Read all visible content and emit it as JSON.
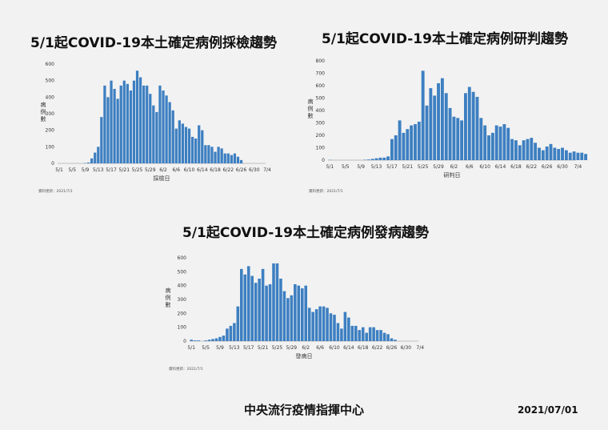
{
  "titles": {
    "test": "5/1起COVID-19本土確定病例採檢趨勢",
    "judge": "5/1起COVID-19本土確定病例研判趨勢",
    "onset": "5/1起COVID-19本土確定病例發病趨勢"
  },
  "footer": {
    "org": "中央流行疫情指揮中心",
    "date": "2021/07/01"
  },
  "colors": {
    "bar": "#3d7fc1",
    "axis": "#888888"
  },
  "chart_data": [
    {
      "type": "bar",
      "title": "5/1起COVID-19本土確定病例採檢趨勢",
      "xlabel": "採檢日",
      "ylabel": "病例數",
      "source": "資料更新：2021/7/1",
      "ylim": [
        0,
        600
      ],
      "yticks": [
        0,
        100,
        200,
        300,
        400,
        500,
        600
      ],
      "x_tick_labels": [
        "5/1",
        "5/5",
        "5/9",
        "5/13",
        "5/17",
        "5/21",
        "5/25",
        "5/29",
        "6/2",
        "6/6",
        "6/10",
        "6/14",
        "6/18",
        "6/22",
        "6/26",
        "6/30",
        "7/4"
      ],
      "values": [
        0,
        0,
        0,
        0,
        0,
        0,
        0,
        0,
        2,
        5,
        30,
        65,
        100,
        280,
        470,
        400,
        500,
        450,
        390,
        470,
        500,
        480,
        440,
        500,
        560,
        520,
        470,
        470,
        420,
        350,
        310,
        470,
        440,
        410,
        370,
        320,
        210,
        260,
        240,
        220,
        210,
        160,
        150,
        230,
        200,
        110,
        110,
        100,
        70,
        100,
        90,
        60,
        60,
        50,
        60,
        40,
        20,
        0,
        0,
        0,
        0,
        0
      ],
      "grid": false
    },
    {
      "type": "bar",
      "title": "5/1起COVID-19本土確定病例研判趨勢",
      "xlabel": "研判日",
      "ylabel": "病例數",
      "source": "資料更新：2021/7/1",
      "ylim": [
        0,
        800
      ],
      "yticks": [
        0,
        100,
        200,
        300,
        400,
        500,
        600,
        700,
        800
      ],
      "x_tick_labels": [
        "5/1",
        "5/5",
        "5/9",
        "5/13",
        "5/17",
        "5/21",
        "5/25",
        "5/29",
        "6/2",
        "6/6",
        "6/10",
        "6/14",
        "6/18",
        "6/22",
        "6/26",
        "6/30",
        "7/4"
      ],
      "values": [
        2,
        0,
        0,
        0,
        0,
        0,
        0,
        0,
        0,
        3,
        5,
        10,
        15,
        20,
        20,
        30,
        170,
        200,
        320,
        220,
        250,
        280,
        290,
        310,
        720,
        440,
        580,
        520,
        620,
        660,
        540,
        420,
        350,
        340,
        320,
        540,
        590,
        550,
        510,
        340,
        280,
        200,
        220,
        280,
        270,
        290,
        260,
        170,
        160,
        120,
        160,
        170,
        180,
        140,
        100,
        80,
        110,
        130,
        100,
        90,
        100,
        80,
        60,
        70,
        60,
        60,
        50,
        0,
        0,
        0,
        0,
        0
      ],
      "grid": false
    },
    {
      "type": "bar",
      "title": "5/1起COVID-19本土確定病例發病趨勢",
      "xlabel": "發病日",
      "ylabel": "病例數",
      "source": "資料更新：2021/7/1",
      "ylim": [
        0,
        600
      ],
      "yticks": [
        0,
        100,
        200,
        300,
        400,
        500,
        600
      ],
      "x_tick_labels": [
        "5/1",
        "5/5",
        "5/9",
        "5/13",
        "5/17",
        "5/21",
        "5/25",
        "5/29",
        "6/2",
        "6/6",
        "6/10",
        "6/14",
        "6/18",
        "6/22",
        "6/26",
        "6/30",
        "7/4"
      ],
      "values": [
        10,
        5,
        5,
        0,
        5,
        10,
        15,
        20,
        30,
        40,
        90,
        110,
        130,
        250,
        520,
        480,
        540,
        470,
        420,
        450,
        520,
        400,
        410,
        560,
        560,
        450,
        360,
        310,
        330,
        410,
        400,
        380,
        400,
        240,
        210,
        230,
        250,
        250,
        240,
        200,
        190,
        130,
        90,
        210,
        170,
        110,
        110,
        80,
        100,
        60,
        100,
        100,
        80,
        80,
        60,
        50,
        20,
        10,
        0,
        0,
        0,
        0,
        0,
        0
      ],
      "grid": false
    }
  ]
}
